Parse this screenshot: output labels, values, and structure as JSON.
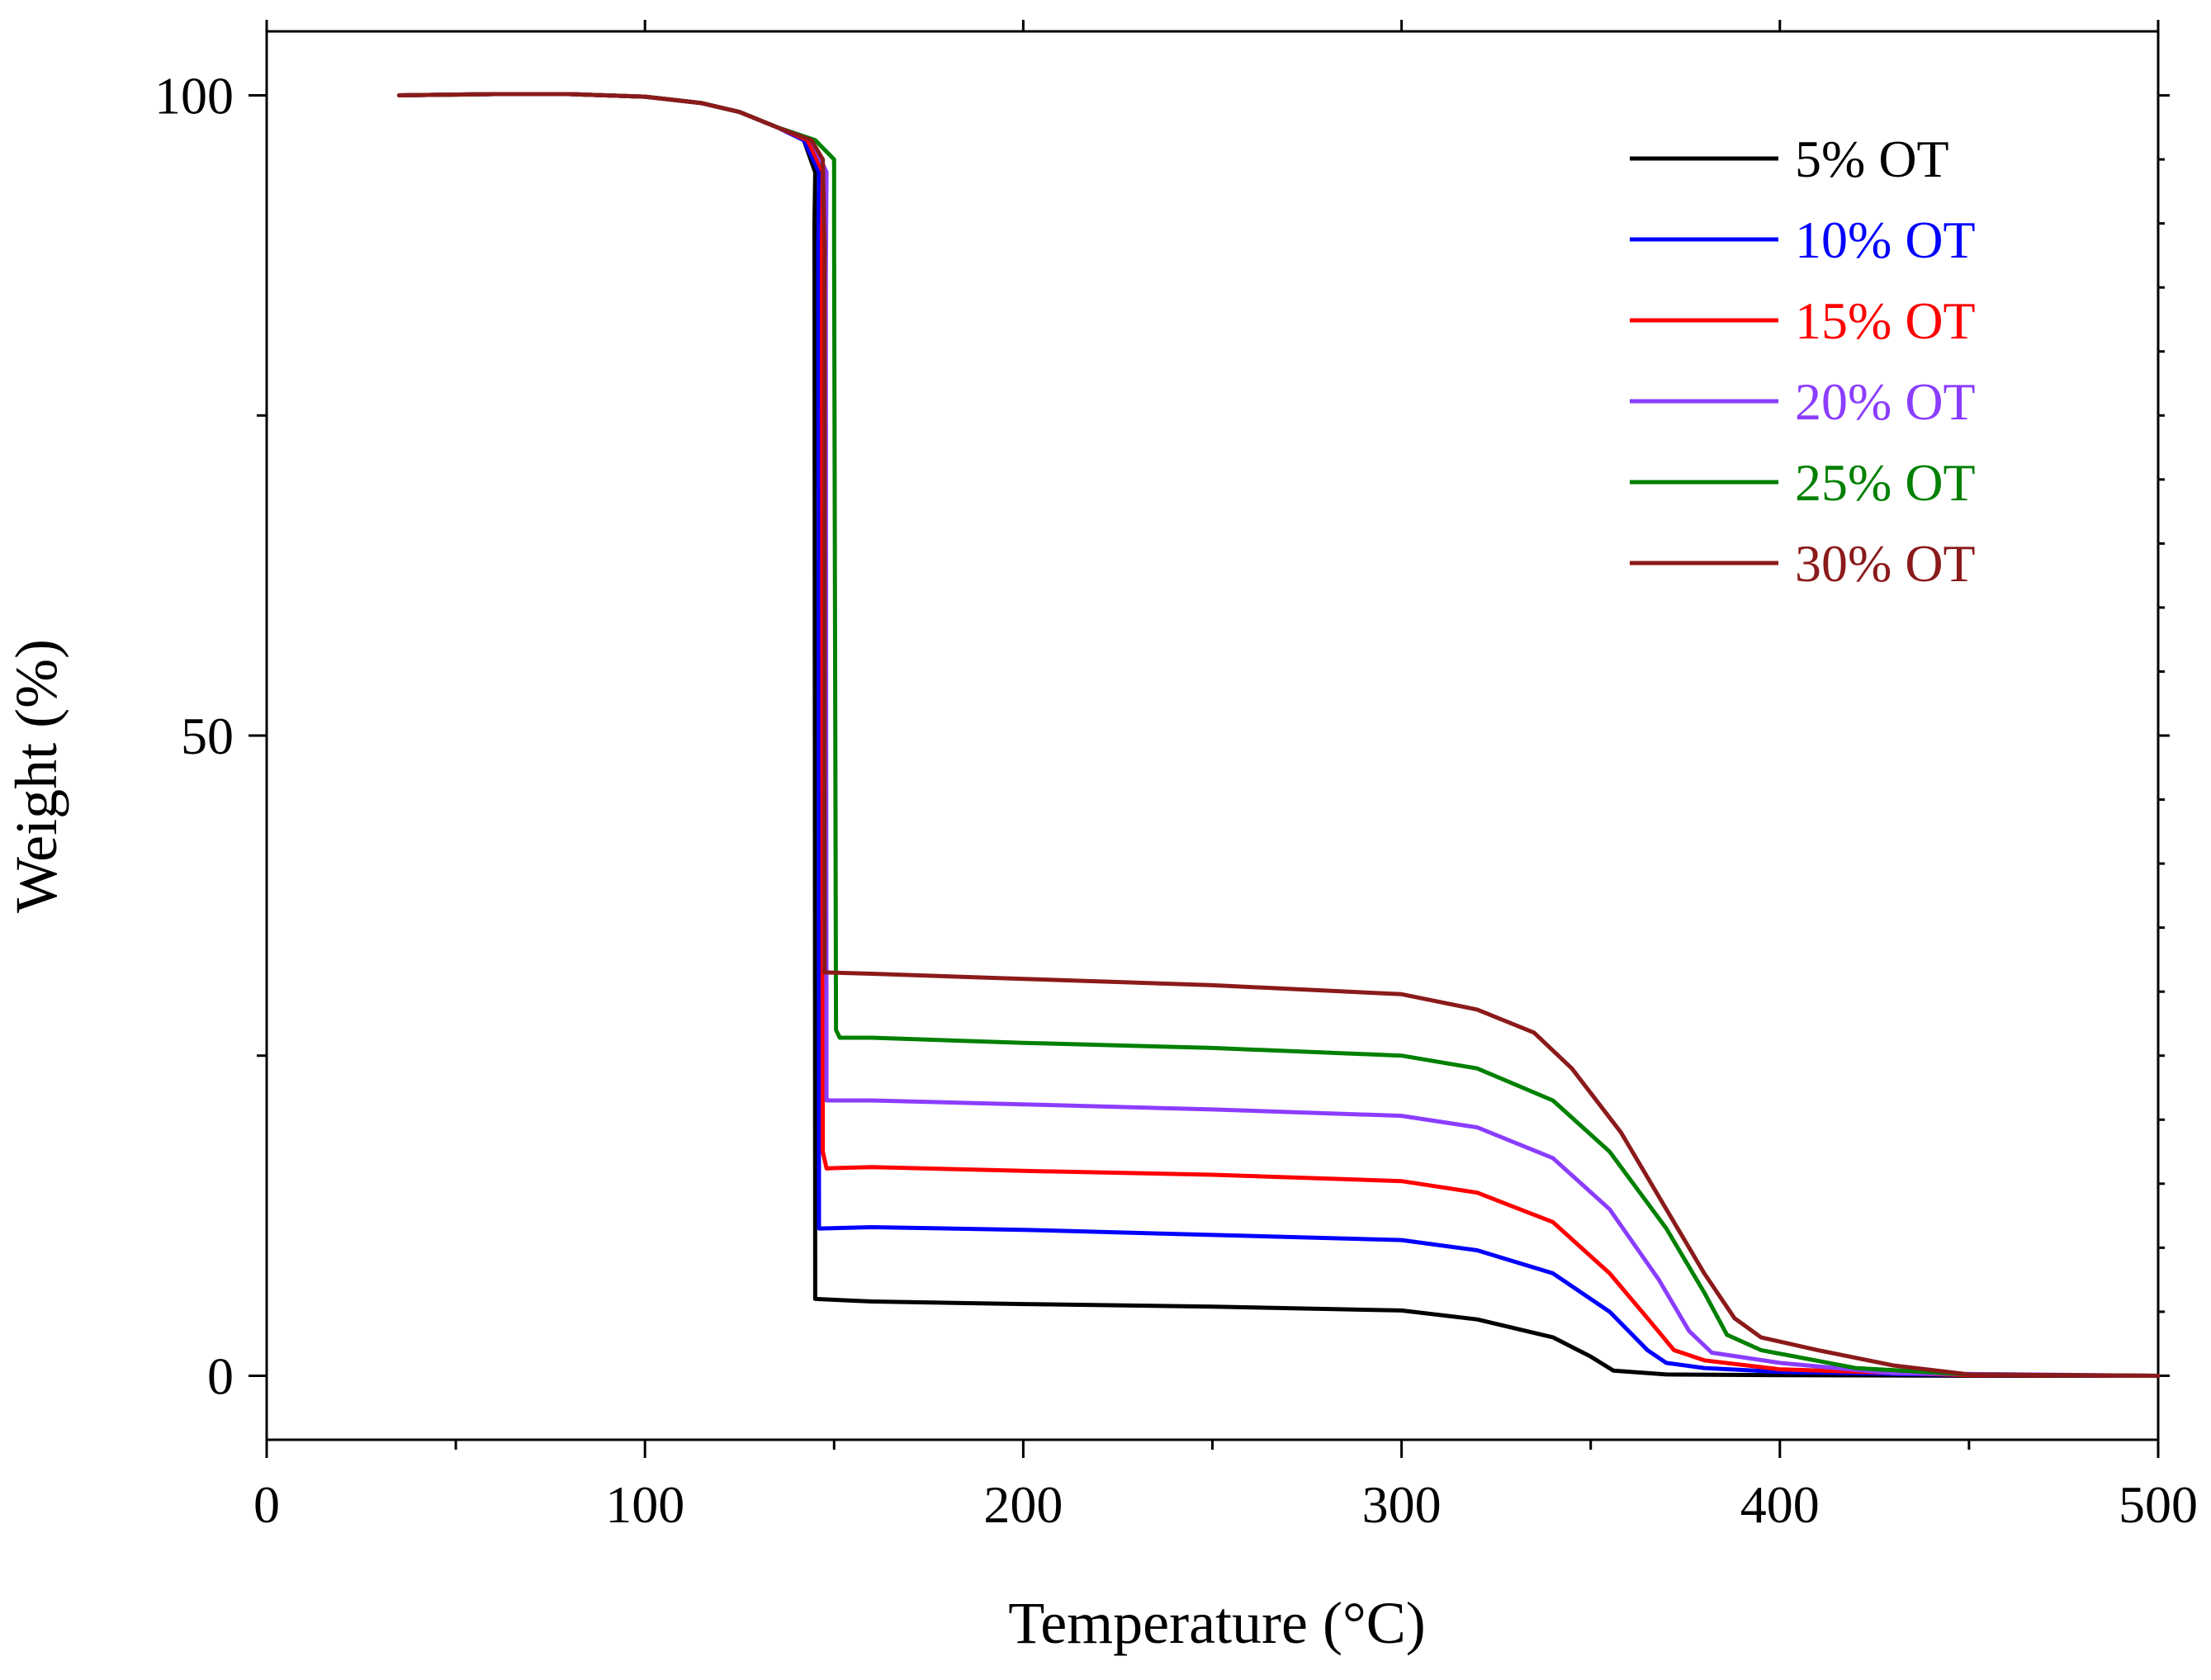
{
  "chart_data": {
    "type": "line",
    "title": "",
    "xlabel": "Temperature (°C)",
    "ylabel": "Weight (%)",
    "xlim": [
      0,
      500
    ],
    "ylim": [
      -5,
      105
    ],
    "x_ticks": [
      0,
      100,
      200,
      300,
      400,
      500
    ],
    "y_ticks": [
      0,
      50,
      100
    ],
    "x_tick_labels": [
      "0",
      "100",
      "200",
      "300",
      "400",
      "500"
    ],
    "y_tick_labels": [
      "0",
      "50",
      "100"
    ],
    "legend_position": "top-right",
    "grid": false,
    "series": [
      {
        "name": "5% OT",
        "color": "#000000",
        "points": [
          [
            35,
            100
          ],
          [
            60,
            100.1
          ],
          [
            80,
            100.1
          ],
          [
            100,
            99.9
          ],
          [
            115,
            99.4
          ],
          [
            125,
            98.7
          ],
          [
            135,
            97.5
          ],
          [
            142,
            96.5
          ],
          [
            145,
            94.0
          ],
          [
            144.8,
            90
          ],
          [
            145,
            6
          ],
          [
            160,
            5.8
          ],
          [
            200,
            5.6
          ],
          [
            250,
            5.4
          ],
          [
            300,
            5.1
          ],
          [
            320,
            4.4
          ],
          [
            340,
            3.0
          ],
          [
            350,
            1.5
          ],
          [
            356,
            0.4
          ],
          [
            370,
            0.1
          ],
          [
            400,
            0.05
          ],
          [
            450,
            0
          ],
          [
            500,
            0
          ]
        ]
      },
      {
        "name": "10% OT",
        "color": "#0000ff",
        "points": [
          [
            35,
            100
          ],
          [
            60,
            100.1
          ],
          [
            80,
            100.1
          ],
          [
            100,
            99.9
          ],
          [
            115,
            99.4
          ],
          [
            125,
            98.7
          ],
          [
            135,
            97.5
          ],
          [
            142,
            96.5
          ],
          [
            146,
            94.0
          ],
          [
            145.8,
            88
          ],
          [
            146,
            11.5
          ],
          [
            160,
            11.6
          ],
          [
            200,
            11.4
          ],
          [
            250,
            11.0
          ],
          [
            300,
            10.6
          ],
          [
            320,
            9.8
          ],
          [
            340,
            8.0
          ],
          [
            355,
            5.0
          ],
          [
            365,
            2.0
          ],
          [
            370,
            1.0
          ],
          [
            380,
            0.6
          ],
          [
            400,
            0.3
          ],
          [
            450,
            0.05
          ],
          [
            500,
            0
          ]
        ]
      },
      {
        "name": "15% OT",
        "color": "#ff0000",
        "points": [
          [
            35,
            100
          ],
          [
            60,
            100.1
          ],
          [
            80,
            100.1
          ],
          [
            100,
            99.9
          ],
          [
            115,
            99.4
          ],
          [
            125,
            98.7
          ],
          [
            135,
            97.5
          ],
          [
            143,
            96.5
          ],
          [
            147,
            94.0
          ],
          [
            146.8,
            88
          ],
          [
            147,
            17.5
          ],
          [
            148,
            16.2
          ],
          [
            160,
            16.3
          ],
          [
            200,
            16.0
          ],
          [
            250,
            15.7
          ],
          [
            300,
            15.2
          ],
          [
            320,
            14.3
          ],
          [
            340,
            12.0
          ],
          [
            355,
            8.0
          ],
          [
            365,
            4.5
          ],
          [
            372,
            2.0
          ],
          [
            380,
            1.2
          ],
          [
            400,
            0.5
          ],
          [
            450,
            0.05
          ],
          [
            500,
            0
          ]
        ]
      },
      {
        "name": "20% OT",
        "color": "#8b3dff",
        "points": [
          [
            35,
            100
          ],
          [
            60,
            100.1
          ],
          [
            80,
            100.1
          ],
          [
            100,
            99.9
          ],
          [
            115,
            99.4
          ],
          [
            125,
            98.7
          ],
          [
            135,
            97.5
          ],
          [
            144,
            96.5
          ],
          [
            148,
            94.0
          ],
          [
            147.8,
            86
          ],
          [
            148,
            21.5
          ],
          [
            160,
            21.5
          ],
          [
            200,
            21.2
          ],
          [
            250,
            20.8
          ],
          [
            300,
            20.3
          ],
          [
            320,
            19.4
          ],
          [
            340,
            17.0
          ],
          [
            355,
            13.0
          ],
          [
            368,
            7.5
          ],
          [
            376,
            3.5
          ],
          [
            382,
            1.8
          ],
          [
            400,
            1.0
          ],
          [
            430,
            0.2
          ],
          [
            500,
            0
          ]
        ]
      },
      {
        "name": "25% OT",
        "color": "#008000",
        "points": [
          [
            35,
            100
          ],
          [
            60,
            100.1
          ],
          [
            80,
            100.1
          ],
          [
            100,
            99.9
          ],
          [
            115,
            99.4
          ],
          [
            125,
            98.7
          ],
          [
            135,
            97.5
          ],
          [
            145,
            96.5
          ],
          [
            150,
            95.0
          ],
          [
            150,
            88
          ],
          [
            150.5,
            27
          ],
          [
            151.5,
            26.4
          ],
          [
            160,
            26.4
          ],
          [
            200,
            26.0
          ],
          [
            250,
            25.6
          ],
          [
            300,
            25.0
          ],
          [
            320,
            24.0
          ],
          [
            340,
            21.5
          ],
          [
            355,
            17.5
          ],
          [
            370,
            11.5
          ],
          [
            380,
            6.5
          ],
          [
            386,
            3.2
          ],
          [
            395,
            2.0
          ],
          [
            420,
            0.6
          ],
          [
            450,
            0.1
          ],
          [
            500,
            0
          ]
        ]
      },
      {
        "name": "30% OT",
        "color": "#8b1a1a",
        "points": [
          [
            35,
            100
          ],
          [
            60,
            100.1
          ],
          [
            80,
            100.1
          ],
          [
            100,
            99.9
          ],
          [
            115,
            99.4
          ],
          [
            125,
            98.7
          ],
          [
            135,
            97.5
          ],
          [
            144,
            96.5
          ],
          [
            147,
            95.0
          ],
          [
            147.5,
            88
          ],
          [
            147.5,
            31.5
          ],
          [
            160,
            31.4
          ],
          [
            200,
            31.0
          ],
          [
            250,
            30.5
          ],
          [
            300,
            29.8
          ],
          [
            320,
            28.6
          ],
          [
            335,
            26.8
          ],
          [
            345,
            24.0
          ],
          [
            358,
            19.0
          ],
          [
            370,
            13.0
          ],
          [
            380,
            8.0
          ],
          [
            388,
            4.5
          ],
          [
            395,
            3.0
          ],
          [
            410,
            2.0
          ],
          [
            430,
            0.8
          ],
          [
            450,
            0.1
          ],
          [
            500,
            0
          ]
        ]
      }
    ]
  }
}
